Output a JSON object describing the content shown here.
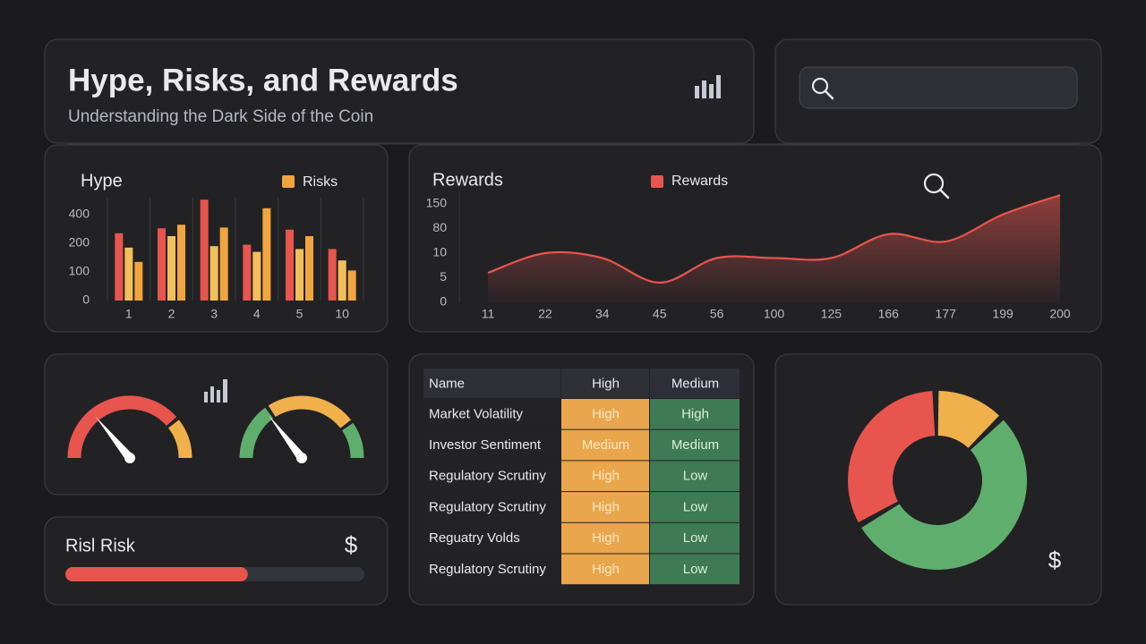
{
  "header": {
    "title": "Hype, Risks, and Rewards",
    "subtitle": "Understanding the Dark Side of the Coin"
  },
  "chart_data": [
    {
      "type": "bar",
      "title": "Hype",
      "categories": [
        "1",
        "2",
        "3",
        "4",
        "5",
        "10"
      ],
      "series": [
        {
          "color": "#e8554e",
          "values": [
            270,
            305,
            505,
            195,
            295,
            180
          ]
        },
        {
          "color": "#f3bf5a",
          "values": [
            185,
            250,
            190,
            170,
            180,
            140
          ]
        },
        {
          "name": "Risks",
          "color": "#f0a53e",
          "values": [
            135,
            330,
            310,
            445,
            250,
            105
          ]
        }
      ],
      "ylim": [
        0,
        520
      ],
      "yticks": [
        0,
        100,
        200,
        400
      ],
      "grid": true
    },
    {
      "type": "area",
      "title": "Rewards",
      "categories": [
        "11",
        "22",
        "34",
        "45",
        "56",
        "100",
        "125",
        "166",
        "177",
        "199",
        "200"
      ],
      "series": [
        {
          "name": "Rewards",
          "color": "#e8554e",
          "values": [
            6,
            10,
            9,
            4,
            9,
            9,
            9,
            64,
            43,
            120,
            175
          ]
        }
      ],
      "ylim": [
        0,
        185
      ],
      "yticks": [
        0,
        5,
        10,
        80,
        150
      ]
    },
    {
      "type": "gauge",
      "value": 28,
      "ylim": [
        0,
        100
      ],
      "bands": [
        78,
        100
      ],
      "colors": [
        "#e8554e",
        "#f0b04c"
      ]
    },
    {
      "type": "gauge",
      "value": 29,
      "ylim": [
        0,
        100
      ],
      "bands": [
        31,
        80,
        100
      ],
      "colors": [
        "#5fae6e",
        "#f0b04c",
        "#5fae6e"
      ]
    },
    {
      "type": "progress",
      "title": "Risl Risk",
      "symbol": "$",
      "value": 61,
      "xlim": [
        0,
        100
      ],
      "color": "#e8554e"
    },
    {
      "type": "pie",
      "symbol": "$",
      "values": [
        33,
        13,
        54
      ],
      "colors": [
        "#e8554e",
        "#f0b04c",
        "#5fae6e"
      ]
    }
  ],
  "table": {
    "header": [
      "Name",
      "High",
      "Medium"
    ],
    "rows": [
      [
        "Market Volatility",
        "High",
        "High"
      ],
      [
        "Investor Sentiment",
        "Medium",
        "Medium"
      ],
      [
        "Regulatory Scrutiny",
        "High",
        "Low"
      ],
      [
        "Regulatory Scrutiny",
        "High",
        "Low"
      ],
      [
        "Reguatry Volds",
        "High",
        "Low"
      ],
      [
        "Regulatory Scrutiny",
        "High",
        "Low"
      ]
    ]
  }
}
